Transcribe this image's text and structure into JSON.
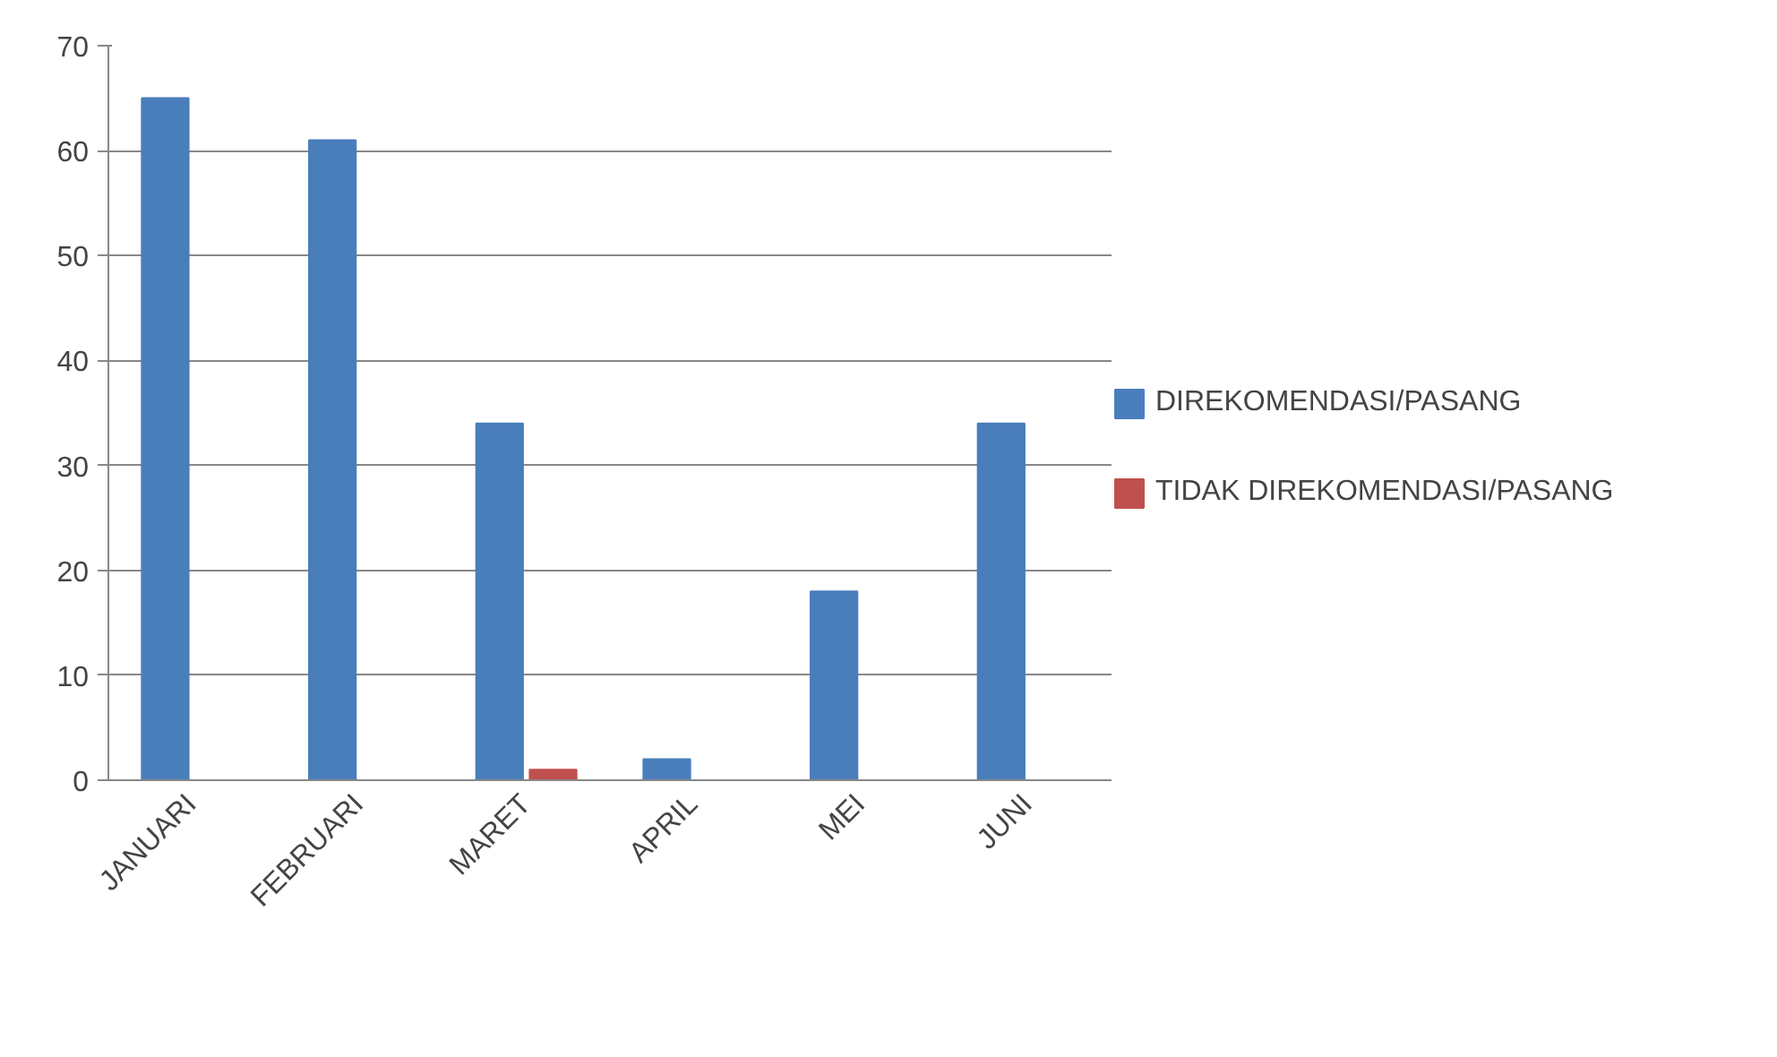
{
  "chart_data": {
    "type": "bar",
    "categories": [
      "JANUARI",
      "FEBRUARI",
      "MARET",
      "APRIL",
      "MEI",
      "JUNI"
    ],
    "series": [
      {
        "name": "DIREKOMENDASI/PASANG",
        "color": "#4a7ebb",
        "values": [
          65,
          61,
          34,
          2,
          18,
          34
        ]
      },
      {
        "name": "TIDAK DIREKOMENDASI/PASANG",
        "color": "#c0504d",
        "values": [
          null,
          null,
          1,
          null,
          null,
          null
        ]
      }
    ],
    "ylim": [
      0,
      70
    ],
    "yticks": [
      0,
      10,
      20,
      30,
      40,
      50,
      60,
      70
    ],
    "grid": "y",
    "legend": "right"
  }
}
